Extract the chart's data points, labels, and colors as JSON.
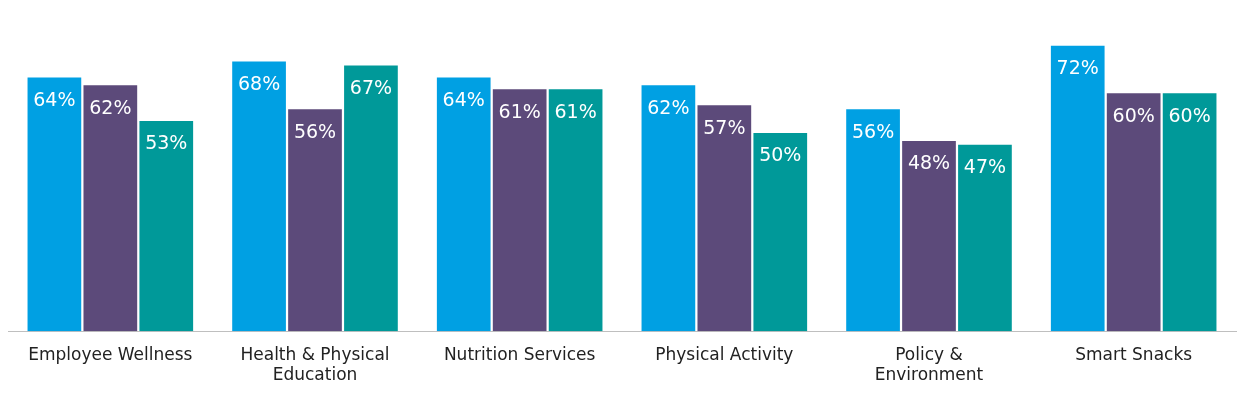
{
  "chart_data": {
    "type": "bar",
    "categories": [
      "Employee Wellness",
      "Health & Physical Education",
      "Nutrition Services",
      "Physical Activity",
      "Policy & Environment",
      "Smart Snacks"
    ],
    "series": [
      {
        "color": "#00a0e3",
        "values": [
          64,
          68,
          64,
          62,
          56,
          72
        ],
        "value_labels": [
          "64%",
          "68%",
          "64%",
          "62%",
          "56%",
          "72%"
        ]
      },
      {
        "color": "#5c4a7a",
        "values": [
          62,
          56,
          61,
          57,
          48,
          60
        ],
        "value_labels": [
          "62%",
          "56%",
          "61%",
          "57%",
          "48%",
          "60%"
        ]
      },
      {
        "color": "#009999",
        "values": [
          53,
          67,
          61,
          50,
          47,
          60
        ],
        "value_labels": [
          "53%",
          "67%",
          "61%",
          "50%",
          "47%",
          "60%"
        ]
      }
    ],
    "legend": false,
    "grid": false,
    "tick_labels": "x"
  }
}
